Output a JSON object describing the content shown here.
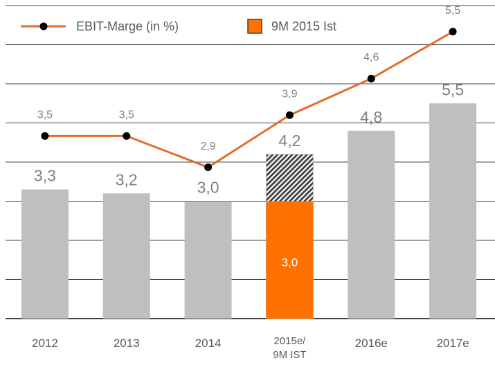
{
  "chart_data": {
    "type": "bar",
    "categories": [
      "2012",
      "2013",
      "2014",
      "2015e/\n9M IST",
      "2016e",
      "2017e"
    ],
    "ylim": [
      0,
      8
    ],
    "yticks": [
      0,
      1,
      2,
      3,
      4,
      5,
      6,
      7,
      8
    ],
    "y2lim": [
      0,
      6
    ],
    "grid": true,
    "series": [
      {
        "type": "bar",
        "color": "#bfbfbf",
        "values": [
          3.3,
          3.2,
          3.0,
          4.2,
          4.8,
          5.5
        ],
        "value_labels": [
          "3,3",
          "3,2",
          "3,0",
          "4,2",
          "4,8",
          "5,5"
        ]
      },
      {
        "type": "bar",
        "name": "9M 2015 Ist",
        "color": "#ff7100",
        "values": [
          null,
          null,
          null,
          3.0,
          null,
          null
        ],
        "value_labels": [
          null,
          null,
          null,
          "3,0",
          null,
          null
        ]
      },
      {
        "type": "line",
        "name": "EBIT-Marge (in %)",
        "color": "#e46c2a",
        "axis": "y2",
        "values": [
          3.5,
          3.5,
          2.9,
          3.9,
          4.6,
          5.5
        ],
        "value_labels": [
          "3,5",
          "3,5",
          "2,9",
          "3,9",
          "4,6",
          "5,5"
        ]
      }
    ]
  }
}
